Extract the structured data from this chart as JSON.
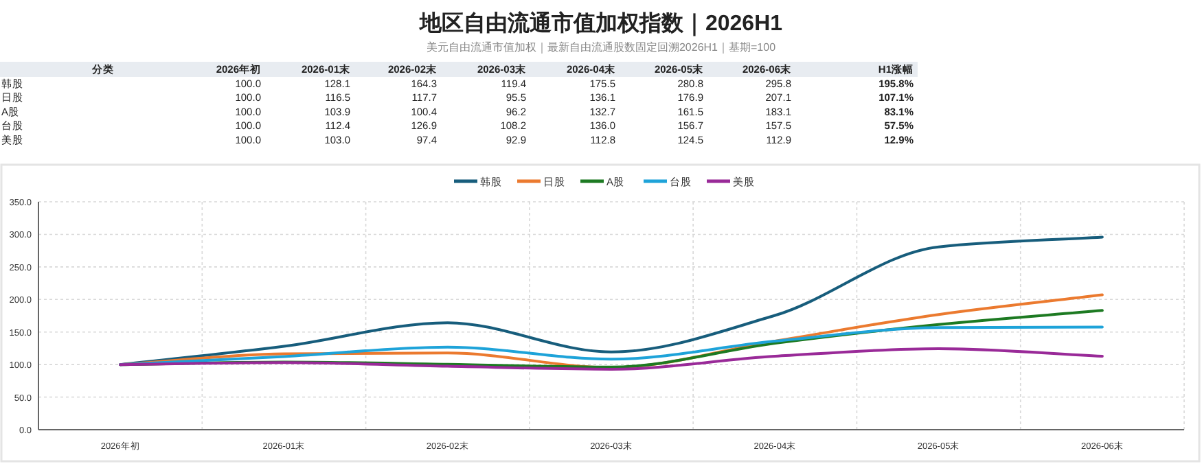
{
  "chart_data": [
    {
      "type": "other",
      "title": "地区自由流通市值加权指数｜2026H1",
      "subtitle": "美元自由流通市值加权｜最新自由流通股数固定回溯2026H1｜基期=100",
      "annotations": [
        "分类",
        "2026年初",
        "2026-01末",
        "2026-02末",
        "2026-03末",
        "2026-04末",
        "2026-05末",
        "2026-06末",
        "H1涨幅",
        "韩股",
        "100.0",
        "128.1",
        "164.3",
        "119.4",
        "175.5",
        "280.8",
        "295.8",
        "195.8%",
        "日股",
        "100.0",
        "116.5",
        "117.7",
        "95.5",
        "136.1",
        "176.9",
        "207.1",
        "107.1%",
        "A股",
        "100.0",
        "103.9",
        "100.4",
        "96.2",
        "132.7",
        "161.5",
        "183.1",
        "83.1%",
        "台股",
        "100.0",
        "112.4",
        "126.9",
        "108.2",
        "136.0",
        "156.7",
        "157.5",
        "57.5%",
        "美股",
        "100.0",
        "103.0",
        "97.4",
        "92.9",
        "112.8",
        "124.5",
        "112.9",
        "12.9%"
      ]
    },
    {
      "type": "line",
      "categories": [
        "2026年初",
        "2026-01末",
        "2026-02末",
        "2026-03末",
        "2026-04末",
        "2026-05末",
        "2026-06末"
      ],
      "series": [
        {
          "name": "韩股",
          "color": "#175d7c",
          "values": [
            100.0,
            128.1,
            164.3,
            119.4,
            175.5,
            280.8,
            295.8
          ]
        },
        {
          "name": "日股",
          "color": "#eb7a2f",
          "values": [
            100.0,
            116.5,
            117.7,
            95.5,
            136.1,
            176.9,
            207.1
          ]
        },
        {
          "name": "A股",
          "color": "#1d7a22",
          "values": [
            100.0,
            103.9,
            100.4,
            96.2,
            132.7,
            161.5,
            183.1
          ]
        },
        {
          "name": "台股",
          "color": "#1ea3d9",
          "values": [
            100.0,
            112.4,
            126.9,
            108.2,
            136.0,
            156.7,
            157.5
          ]
        },
        {
          "name": "美股",
          "color": "#992a98",
          "values": [
            100.0,
            103.0,
            97.4,
            92.9,
            112.8,
            124.5,
            112.9
          ]
        }
      ],
      "ylim": [
        0,
        350
      ],
      "yticks": [
        {
          "value": 0,
          "label": "0.0"
        },
        {
          "value": 50,
          "label": "50.0"
        },
        {
          "value": 100,
          "label": "100.0"
        },
        {
          "value": 150,
          "label": "150.0"
        },
        {
          "value": 200,
          "label": "200.0"
        },
        {
          "value": 250,
          "label": "250.0"
        },
        {
          "value": 300,
          "label": "300.0"
        },
        {
          "value": 350,
          "label": "350.0"
        }
      ],
      "grid": true,
      "legend": "top",
      "line_style": "solid"
    }
  ]
}
